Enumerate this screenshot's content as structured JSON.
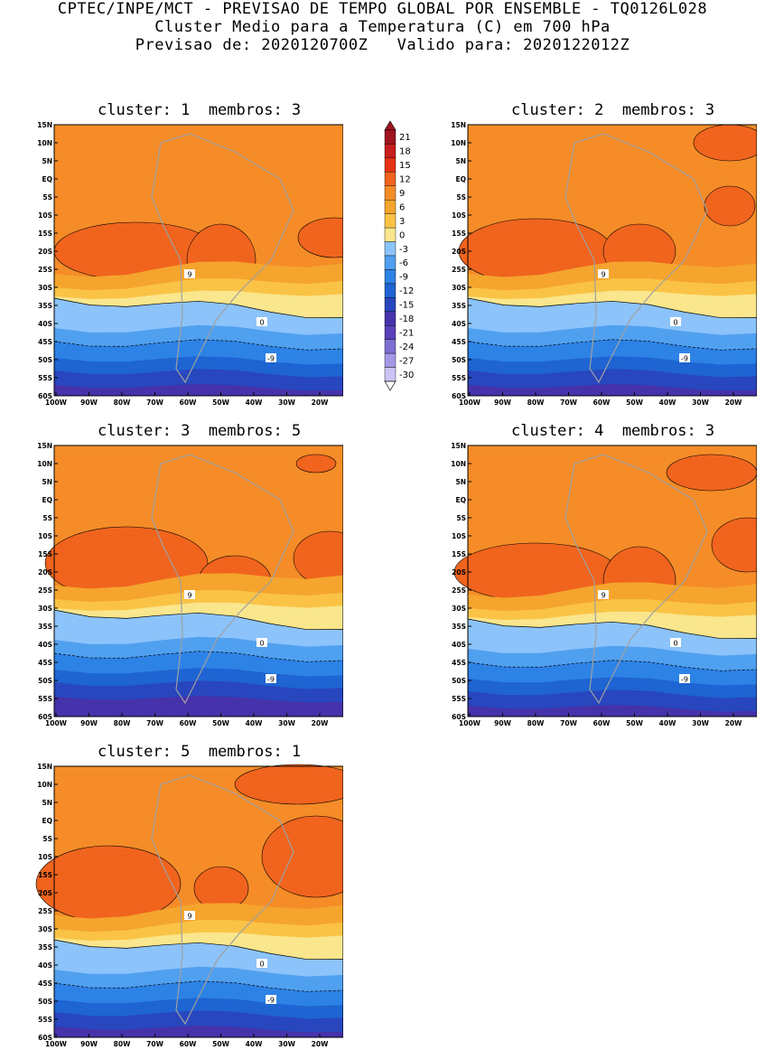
{
  "header": {
    "line1": "CPTEC/INPE/MCT - PREVISAO DE TEMPO GLOBAL POR ENSEMBLE - TQ0126L028",
    "line2": "Cluster Medio para a Temperatura (C) em 700 hPa",
    "line3": "Previsao de: 2020120700Z   Valido para: 2020122012Z"
  },
  "panels": [
    {
      "title": "cluster: 1  membros: 3"
    },
    {
      "title": "cluster: 2  membros: 3"
    },
    {
      "title": "cluster: 3  membros: 5"
    },
    {
      "title": "cluster: 4  membros: 3"
    },
    {
      "title": "cluster: 5  membros: 1"
    }
  ],
  "lat_labels": [
    "15N",
    "10N",
    "5N",
    "EQ",
    "5S",
    "10S",
    "15S",
    "20S",
    "25S",
    "30S",
    "35S",
    "40S",
    "45S",
    "50S",
    "55S",
    "60S"
  ],
  "lon_labels": [
    "100W",
    "90W",
    "80W",
    "70W",
    "60W",
    "50W",
    "40W",
    "30W",
    "20W"
  ],
  "colorbar": {
    "labels": [
      "21",
      "18",
      "15",
      "12",
      "9",
      "6",
      "3",
      "0",
      "-3",
      "-6",
      "-9",
      "-12",
      "-15",
      "-18",
      "-21",
      "-24",
      "-27",
      "-30"
    ],
    "colors": [
      "#a0141e",
      "#c81e1e",
      "#e63214",
      "#f0641e",
      "#f58c28",
      "#f5a52d",
      "#fac346",
      "#fae68c",
      "#8cc3fa",
      "#50a0f0",
      "#2d82e6",
      "#1e64d2",
      "#2846be",
      "#4632aa",
      "#5a41b9",
      "#7d6ed2",
      "#a596e6",
      "#cdc3f5"
    ]
  },
  "contour_labels": {
    "warm": "9",
    "zero": "0",
    "cold": "-9"
  }
}
